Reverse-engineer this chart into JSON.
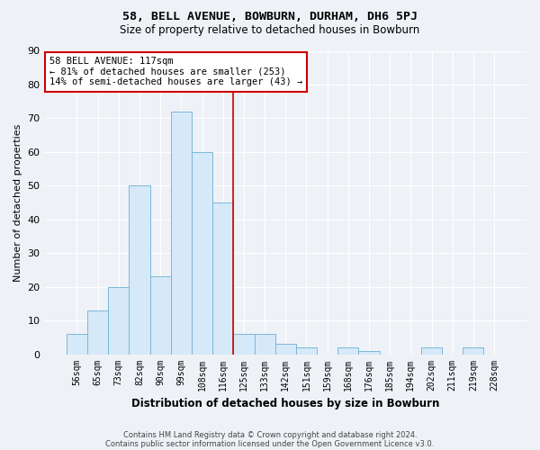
{
  "title": "58, BELL AVENUE, BOWBURN, DURHAM, DH6 5PJ",
  "subtitle": "Size of property relative to detached houses in Bowburn",
  "xlabel": "Distribution of detached houses by size in Bowburn",
  "ylabel": "Number of detached properties",
  "bin_labels": [
    "56sqm",
    "65sqm",
    "73sqm",
    "82sqm",
    "90sqm",
    "99sqm",
    "108sqm",
    "116sqm",
    "125sqm",
    "133sqm",
    "142sqm",
    "151sqm",
    "159sqm",
    "168sqm",
    "176sqm",
    "185sqm",
    "194sqm",
    "202sqm",
    "211sqm",
    "219sqm",
    "228sqm"
  ],
  "bar_heights": [
    6,
    13,
    20,
    50,
    23,
    72,
    60,
    45,
    6,
    6,
    3,
    2,
    0,
    2,
    1,
    0,
    0,
    2,
    0,
    2,
    0
  ],
  "bar_color": "#d6e9f8",
  "bar_edge_color": "#7ab8d9",
  "reference_line_x": 7.5,
  "annotation_title": "58 BELL AVENUE: 117sqm",
  "annotation_line1": "← 81% of detached houses are smaller (253)",
  "annotation_line2": "14% of semi-detached houses are larger (43) →",
  "annotation_box_color": "#ffffff",
  "annotation_box_edge_color": "#cc0000",
  "ref_line_color": "#cc0000",
  "ylim": [
    0,
    90
  ],
  "yticks": [
    0,
    10,
    20,
    30,
    40,
    50,
    60,
    70,
    80,
    90
  ],
  "footnote1": "Contains HM Land Registry data © Crown copyright and database right 2024.",
  "footnote2": "Contains public sector information licensed under the Open Government Licence v3.0.",
  "bg_color": "#eef2f7",
  "plot_bg_color": "#eef2f7",
  "grid_color": "#ffffff"
}
